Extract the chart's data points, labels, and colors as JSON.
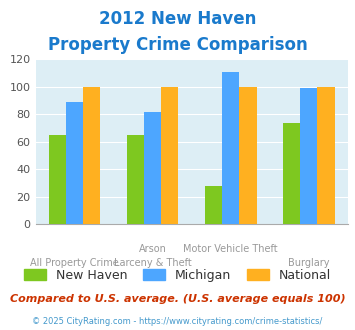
{
  "title_line1": "2012 New Haven",
  "title_line2": "Property Crime Comparison",
  "title_color": "#1a7acc",
  "series": {
    "New Haven": [
      65,
      65,
      28,
      74
    ],
    "Michigan": [
      89,
      82,
      111,
      99
    ],
    "National": [
      100,
      100,
      100,
      100
    ]
  },
  "colors": {
    "New Haven": "#7ec820",
    "Michigan": "#4da6ff",
    "National": "#ffb020"
  },
  "ylim": [
    0,
    120
  ],
  "yticks": [
    0,
    20,
    40,
    60,
    80,
    100,
    120
  ],
  "background_color": "#ddeef5",
  "legend_labels": [
    "New Haven",
    "Michigan",
    "National"
  ],
  "top_labels": [
    "",
    "Arson",
    "Motor Vehicle Theft",
    ""
  ],
  "bot_labels": [
    "All Property Crime",
    "Larceny & Theft",
    "",
    "Burglary"
  ],
  "footnote1": "Compared to U.S. average. (U.S. average equals 100)",
  "footnote2": "© 2025 CityRating.com - https://www.cityrating.com/crime-statistics/",
  "footnote1_color": "#cc3300",
  "footnote2_color": "#4499cc"
}
